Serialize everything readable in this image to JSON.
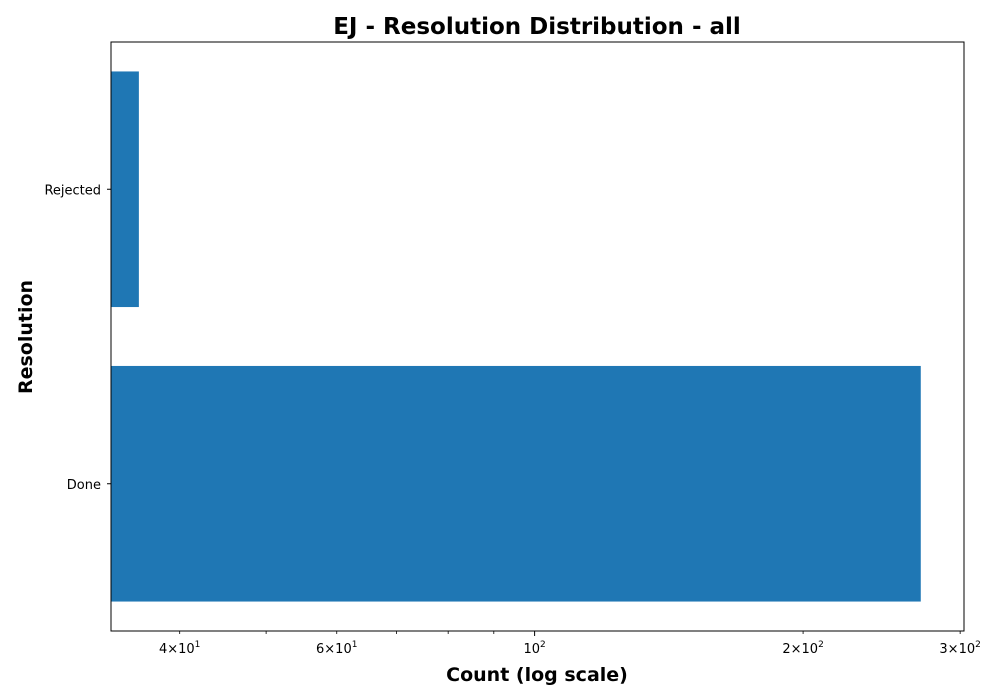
{
  "chart_data": {
    "type": "bar",
    "orientation": "horizontal",
    "title": "EJ - Resolution Distribution - all",
    "xlabel": "Count (log scale)",
    "ylabel": "Resolution",
    "xscale": "log",
    "xlim": [
      33.5,
      303
    ],
    "categories": [
      "Done",
      "Rejected"
    ],
    "series": [
      {
        "name": "count",
        "values": [
          271,
          36
        ],
        "color": "#1f77b4"
      }
    ],
    "major_ticks": [
      {
        "value": 100,
        "mantissa": "",
        "base": "10",
        "exponent": "2"
      }
    ],
    "minor_ticks": [
      {
        "value": 40,
        "mantissa": "4×",
        "base": "10",
        "exponent": "1"
      },
      {
        "value": 60,
        "mantissa": "6×",
        "base": "10",
        "exponent": "1"
      },
      {
        "value": 200,
        "mantissa": "2×",
        "base": "10",
        "exponent": "2"
      },
      {
        "value": 300,
        "mantissa": "3×",
        "base": "10",
        "exponent": "2"
      }
    ],
    "unlabeled_minor_ticks": [
      50,
      70,
      80,
      90
    ],
    "grid": false,
    "legend": "none"
  }
}
